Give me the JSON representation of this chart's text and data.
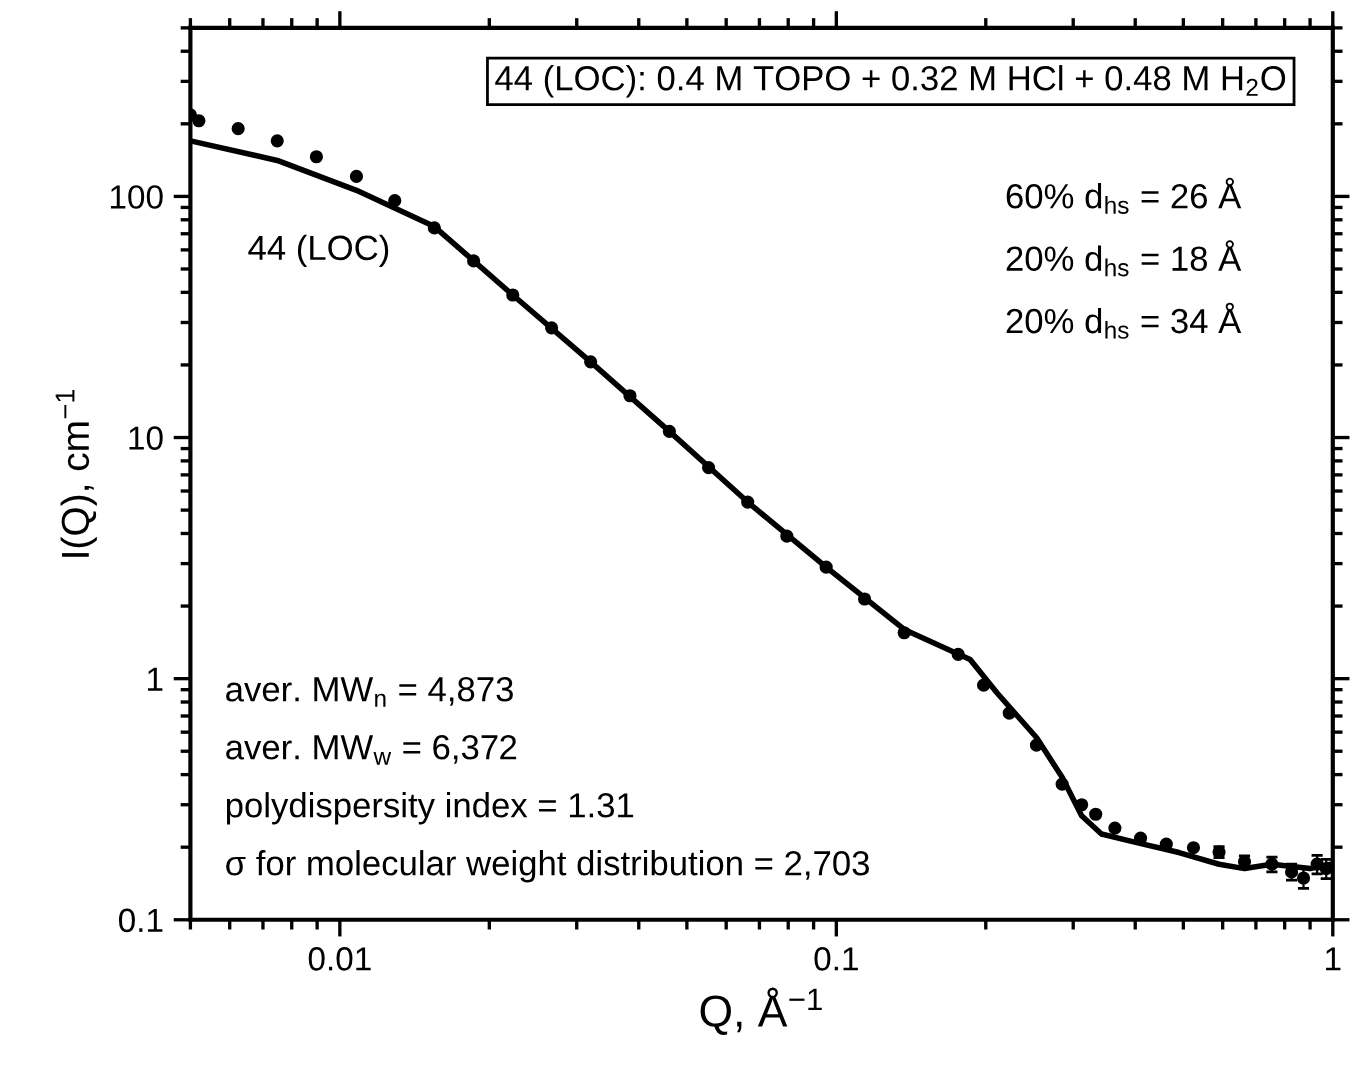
{
  "chart_data": {
    "type": "scatter",
    "xlabel": "Q, Å$^{−1}$",
    "ylabel": "I(Q), cm$^{−1}$",
    "log": "xy",
    "xlim": [
      0.005,
      1
    ],
    "ylim": [
      0.1,
      500
    ],
    "xticks": [
      0.01,
      0.1,
      1
    ],
    "yticks": [
      0.1,
      1,
      10,
      100
    ],
    "grid": false,
    "legend": false,
    "annotations": [
      "44 (LOC): 0.4 M TOPO + 0.32 M HCl + 0.48 M H$_{2}$O",
      "60% d$_{hs}$ = 26 Å",
      "20% d$_{hs}$ = 18 Å",
      "20% d$_{hs}$ = 34 Å",
      "44 (LOC)",
      "aver. MW$_{n}$ = 4,873",
      "aver. MW$_{w}$ = 6,372",
      "polydispersity index = 1.31",
      "σ for molecular weight distribution = 2,703"
    ],
    "series": [
      {
        "marker": "circle",
        "color": "#000000",
        "x": [
          0.005,
          0.0052,
          0.00624,
          0.00748,
          0.00897,
          0.0108,
          0.0129,
          0.0155,
          0.0186,
          0.0223,
          0.0267,
          0.032,
          0.0384,
          0.0461,
          0.0553,
          0.0663,
          0.0795,
          0.0954,
          0.114,
          0.137,
          0.176,
          0.198,
          0.223,
          0.253,
          0.285,
          0.312,
          0.333,
          0.364,
          0.41,
          0.462,
          0.524,
          0.59,
          0.664,
          0.754,
          0.826,
          0.873,
          0.93,
          0.97
        ],
        "values": [
          218,
          206,
          191,
          170,
          146,
          121,
          96,
          74,
          54,
          39,
          28.5,
          20.6,
          14.9,
          10.6,
          7.5,
          5.4,
          3.9,
          2.9,
          2.14,
          1.55,
          1.26,
          0.94,
          0.72,
          0.53,
          0.365,
          0.3,
          0.274,
          0.24,
          0.218,
          0.206,
          0.199,
          0.191,
          0.174,
          0.17,
          0.158,
          0.149,
          0.17,
          0.163
        ],
        "errors": [
          null,
          null,
          null,
          null,
          null,
          null,
          null,
          null,
          null,
          null,
          null,
          null,
          null,
          null,
          null,
          null,
          null,
          null,
          null,
          null,
          null,
          null,
          null,
          null,
          null,
          null,
          null,
          null,
          null,
          null,
          null,
          0.01,
          0.01,
          0.012,
          0.012,
          0.014,
          0.015,
          0.015
        ]
      },
      {
        "type": "line",
        "line_style": "solid",
        "color": "#000000",
        "x": [
          0.005,
          0.00748,
          0.0108,
          0.0155,
          0.0223,
          0.032,
          0.0461,
          0.0663,
          0.0954,
          0.137,
          0.186,
          0.211,
          0.253,
          0.285,
          0.312,
          0.342,
          0.399,
          0.49,
          0.59,
          0.664,
          0.754,
          0.9,
          0.99
        ],
        "values": [
          170,
          141,
          106,
          75,
          39,
          20.6,
          10.6,
          5.4,
          2.9,
          1.6,
          1.2,
          0.87,
          0.57,
          0.39,
          0.27,
          0.227,
          0.21,
          0.19,
          0.17,
          0.163,
          0.17,
          0.163,
          0.17
        ]
      }
    ]
  }
}
